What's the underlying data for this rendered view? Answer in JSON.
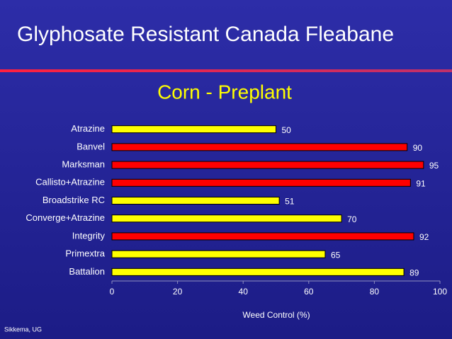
{
  "chart_data": {
    "type": "bar",
    "orientation": "horizontal",
    "title": "Glyphosate Resistant Canada Fleabane",
    "subtitle": "Corn - Preplant",
    "footer": "Sikkema, UG",
    "x_label": "Weed Control (%)",
    "categories": [
      "Atrazine",
      "Banvel",
      "Marksman",
      "Callisto+Atrazine",
      "Broadstrike RC",
      "Converge+Atrazine",
      "Integrity",
      "Primextra",
      "Battalion"
    ],
    "values": [
      50,
      90,
      95,
      91,
      51,
      70,
      92,
      65,
      89
    ],
    "colors": [
      "#ffff00",
      "#ff0000",
      "#ff0000",
      "#ff0000",
      "#ffff00",
      "#ffff00",
      "#ff0000",
      "#ffff00",
      "#ffff00"
    ],
    "xlim": [
      0,
      100
    ],
    "xticks": [
      0,
      20,
      40,
      60,
      80,
      100
    ],
    "grid": false
  }
}
